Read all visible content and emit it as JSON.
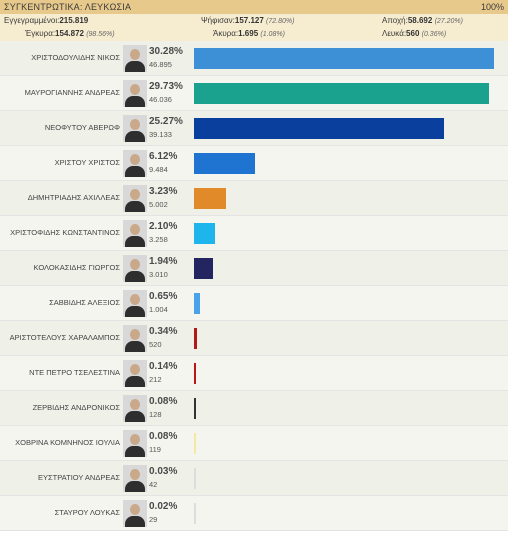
{
  "header": {
    "title": "ΣΥΓΚΕΝΤΡΩΤΙΚΑ: ΛΕΥΚΩΣΙΑ",
    "percent": "100%"
  },
  "stats": {
    "registered_label": "Εγγεγραμμένοι:",
    "registered_value": "215.819",
    "voted_label": "Ψήφισαν:",
    "voted_value": "157.127",
    "voted_pct": "(72.80%)",
    "abstention_label": "Αποχή:",
    "abstention_value": "58.692",
    "abstention_pct": "(27.20%)",
    "valid_label": "Έγκυρα:",
    "valid_value": "154.872",
    "valid_pct": "(98.56%)",
    "invalid_label": "Άκυρα:",
    "invalid_value": "1.695",
    "invalid_pct": "(1.08%)",
    "blank_label": "Λευκά:",
    "blank_value": "560",
    "blank_pct": "(0.36%)"
  },
  "candidates": [
    {
      "name": "ΧΡΙΣΤΟΔΟΥΛΙΔΗΣ ΝΙΚΟΣ",
      "percent": "30.28%",
      "votes": "46.895",
      "share": 30.28,
      "color": "#3d8fd6"
    },
    {
      "name": "ΜΑΥΡΟΓΙΑΝΝΗΣ ΑΝΔΡΕΑΣ",
      "percent": "29.73%",
      "votes": "46.036",
      "share": 29.73,
      "color": "#1aa28f"
    },
    {
      "name": "ΝΕΟΦΥΤΟΥ ΑΒΕΡΩΦ",
      "percent": "25.27%",
      "votes": "39.133",
      "share": 25.27,
      "color": "#0b3f9e"
    },
    {
      "name": "ΧΡΙΣΤΟΥ ΧΡΙΣΤΟΣ",
      "percent": "6.12%",
      "votes": "9.484",
      "share": 6.12,
      "color": "#1f73d1"
    },
    {
      "name": "ΔΗΜΗΤΡΙΑΔΗΣ ΑΧΙΛΛΕΑΣ",
      "percent": "3.23%",
      "votes": "5.002",
      "share": 3.23,
      "color": "#e08a2a"
    },
    {
      "name": "ΧΡΙΣΤΟΦΙΔΗΣ ΚΩΝΣΤΑΝΤΙΝΟΣ",
      "percent": "2.10%",
      "votes": "3.258",
      "share": 2.1,
      "color": "#1eb4ec"
    },
    {
      "name": "ΚΟΛΟΚΑΣΙΔΗΣ ΓΙΩΡΓΟΣ",
      "percent": "1.94%",
      "votes": "3.010",
      "share": 1.94,
      "color": "#222560"
    },
    {
      "name": "ΣΑΒΒΙΔΗΣ ΑΛΕΞΙΟΣ",
      "percent": "0.65%",
      "votes": "1.004",
      "share": 0.65,
      "color": "#4aa3e8"
    },
    {
      "name": "ΑΡΙΣΤΟΤΕΛΟΥΣ ΧΑΡΑΛΑΜΠΟΣ",
      "percent": "0.34%",
      "votes": "520",
      "share": 0.34,
      "color": "#b3191b"
    },
    {
      "name": "ΝΤΕ ΠΕΤΡΟ ΤΣΕΛΕΣΤΙΝΑ",
      "percent": "0.14%",
      "votes": "212",
      "share": 0.14,
      "color": "#c0141c"
    },
    {
      "name": "ΖΕΡΒΙΔΗΣ ΑΝΔΡΟΝΙΚΟΣ",
      "percent": "0.08%",
      "votes": "128",
      "share": 0.08,
      "color": "#333333"
    },
    {
      "name": "ΧΟΒΡΙΝΑ ΚΟΜΝΗΝΟΣ ΙΟΥΛΙΑ",
      "percent": "0.08%",
      "votes": "119",
      "share": 0.08,
      "color": "#f3e9a0"
    },
    {
      "name": "ΕΥΣΤΡΑΤΙΟΥ ΑΝΔΡΕΑΣ",
      "percent": "0.03%",
      "votes": "42",
      "share": 0.03,
      "color": "#dddddd"
    },
    {
      "name": "ΣΤΑΥΡΟΥ ΛΟΥΚΑΣ",
      "percent": "0.02%",
      "votes": "29",
      "share": 0.02,
      "color": "#dddddd"
    }
  ]
}
